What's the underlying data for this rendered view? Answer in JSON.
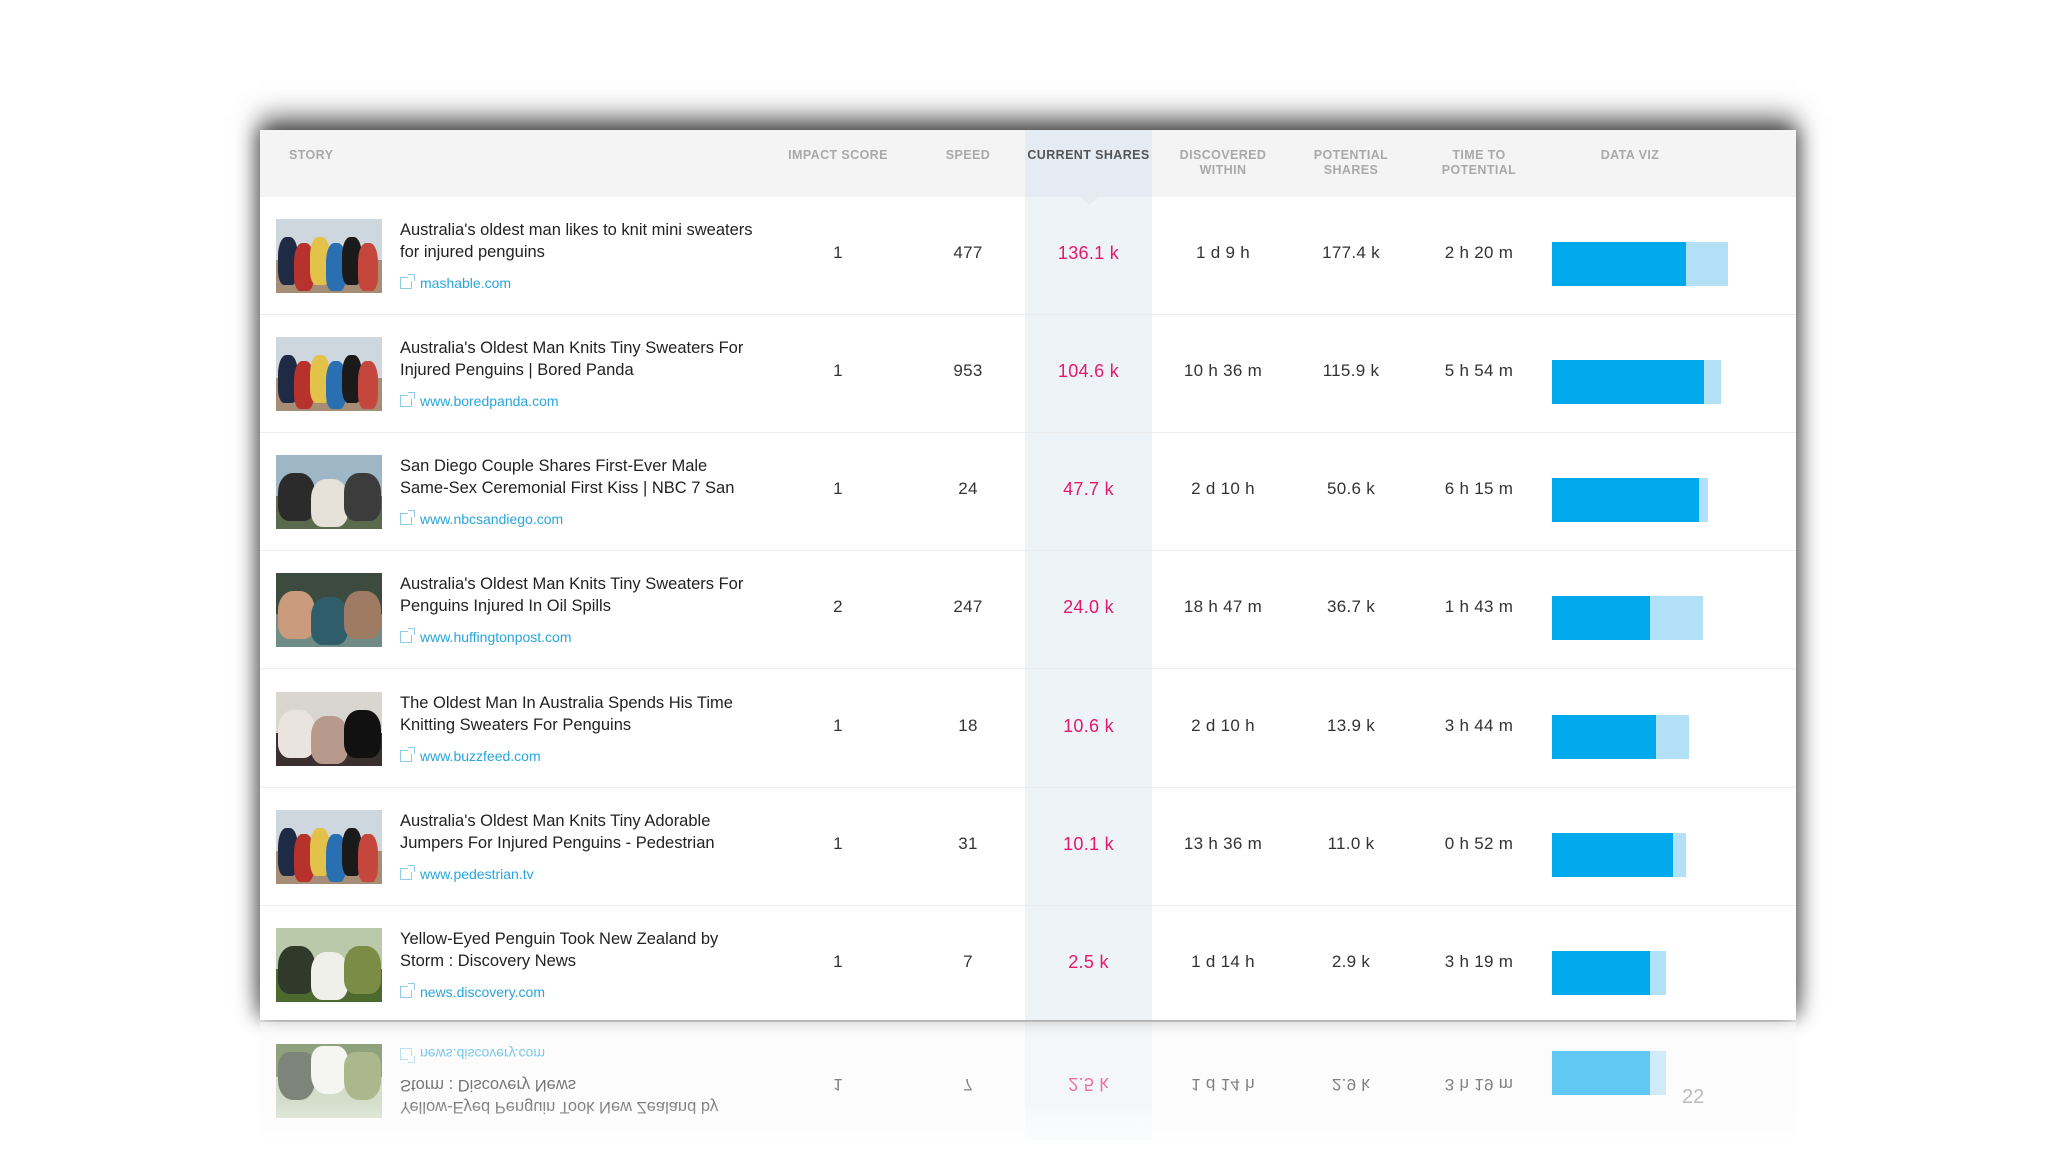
{
  "columns": {
    "story": "STORY",
    "impact_score": "IMPACT SCORE",
    "speed": "SPEED",
    "current_shares": "CURRENT SHARES",
    "discovered_within": "DISCOVERED WITHIN",
    "potential_shares": "POTENTIAL SHARES",
    "time_to_potential": "TIME TO POTENTIAL",
    "data_viz": "DATA VIZ"
  },
  "colors": {
    "accent": "#00a8ec",
    "accent_light": "#b2e0f7",
    "current_shares_text": "#e4196e",
    "link": "#28a5dc"
  },
  "rows": [
    {
      "title": "Australia's oldest man likes to knit mini sweaters for injured penguins",
      "source": "mashable.com",
      "impact": "1",
      "speed": "477",
      "current": "136.1 k",
      "discovered": "1 d 9 h",
      "potential": "177.4 k",
      "time": "2 h 20 m",
      "thumbnail": "penguins-in-sweaters",
      "viz": {
        "current_share": 0.76,
        "potential_share": 1.0
      }
    },
    {
      "title": "Australia's Oldest Man Knits Tiny Sweaters For Injured Penguins | Bored Panda",
      "source": "www.boredpanda.com",
      "impact": "1",
      "speed": "953",
      "current": "104.6 k",
      "discovered": "10 h 36 m",
      "potential": "115.9 k",
      "time": "5 h 54 m",
      "thumbnail": "penguins-in-sweaters",
      "viz": {
        "current_share": 0.865,
        "potential_share": 0.96
      }
    },
    {
      "title": "San Diego Couple Shares First-Ever Male Same-Sex Ceremonial First Kiss | NBC 7 San",
      "source": "www.nbcsandiego.com",
      "impact": "1",
      "speed": "24",
      "current": "47.7 k",
      "discovered": "2 d 10 h",
      "potential": "50.6 k",
      "time": "6 h 15 m",
      "thumbnail": "couple-kiss",
      "viz": {
        "current_share": 0.835,
        "potential_share": 0.885
      }
    },
    {
      "title": "Australia's Oldest Man Knits Tiny Sweaters For Penguins Injured In Oil Spills",
      "source": "www.huffingtonpost.com",
      "impact": "2",
      "speed": "247",
      "current": "24.0 k",
      "discovered": "18 h 47 m",
      "potential": "36.7 k",
      "time": "1 h 43 m",
      "thumbnail": "penguin-in-hand",
      "viz": {
        "current_share": 0.555,
        "potential_share": 0.86
      }
    },
    {
      "title": "The Oldest Man In Australia Spends His Time Knitting Sweaters For Penguins",
      "source": "www.buzzfeed.com",
      "impact": "1",
      "speed": "18",
      "current": "10.6 k",
      "discovered": "2 d 10 h",
      "potential": "13.9 k",
      "time": "3 h 44 m",
      "thumbnail": "old-man",
      "viz": {
        "current_share": 0.59,
        "potential_share": 0.78
      }
    },
    {
      "title": "Australia's Oldest Man Knits Tiny Adorable Jumpers For Injured Penguins - Pedestrian",
      "source": "www.pedestrian.tv",
      "impact": "1",
      "speed": "31",
      "current": "10.1 k",
      "discovered": "13 h 36 m",
      "potential": "11.0 k",
      "time": "0 h 52 m",
      "thumbnail": "penguins-in-sweaters",
      "viz": {
        "current_share": 0.69,
        "potential_share": 0.76
      }
    },
    {
      "title": "Yellow-Eyed Penguin Took New Zealand by Storm : Discovery News",
      "source": "news.discovery.com",
      "impact": "1",
      "speed": "7",
      "current": "2.5 k",
      "discovered": "1 d 14 h",
      "potential": "2.9 k",
      "time": "3 h 19 m",
      "thumbnail": "yellow-eyed-penguin",
      "viz": {
        "current_share": 0.555,
        "potential_share": 0.65
      }
    }
  ],
  "page_number": "22"
}
